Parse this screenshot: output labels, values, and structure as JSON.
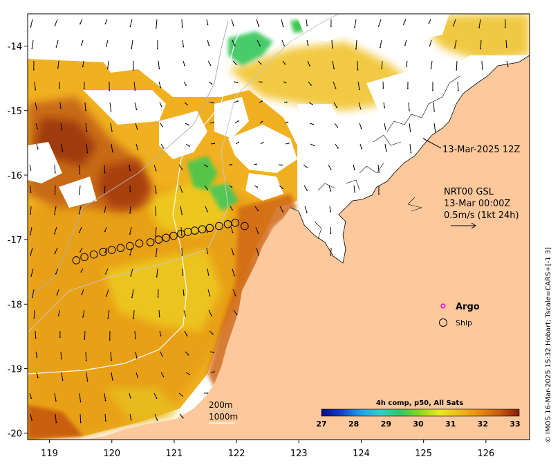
{
  "map": {
    "x_axis": {
      "min": 118.65,
      "max": 126.7,
      "ticks": [
        "119",
        "120",
        "121",
        "122",
        "123",
        "124",
        "125",
        "126"
      ],
      "tick_values": [
        119,
        120,
        121,
        122,
        123,
        124,
        125,
        126
      ]
    },
    "y_axis": {
      "min": -20.1,
      "max": -13.5,
      "ticks": [
        "-14",
        "-15",
        "-16",
        "-17",
        "-18",
        "-19",
        "-20"
      ],
      "tick_values": [
        -14,
        -15,
        -16,
        -17,
        -18,
        -19,
        -20
      ]
    },
    "land_color": "#fdc99c",
    "colormap": [
      "#0a0a8a",
      "#1540c8",
      "#1fa0e8",
      "#30d0c8",
      "#30c860",
      "#90d820",
      "#e8e820",
      "#f2b81a",
      "#e88a10",
      "#c85a10",
      "#8a1a08"
    ]
  },
  "annotations": {
    "time_label": "13-Mar-2025 12Z",
    "info_line1": "NRT00 GSL",
    "info_line2": "13-Mar 00:00Z",
    "info_line3": "0.5m/s (1kt 24h)"
  },
  "legend": {
    "argo_label": "Argo",
    "ship_label": "Ship",
    "argo_color": "#e000e0"
  },
  "contours": {
    "label_200": "200m",
    "label_1000": "1000m"
  },
  "colorbar": {
    "title": "4h comp, p50, All Sats",
    "ticks": [
      "27",
      "28",
      "29",
      "30",
      "31",
      "32",
      "33"
    ],
    "range": [
      27,
      33
    ]
  },
  "credit": "© IMOS 16-Mar-2025 15:32 Hobart; Tscale=CARS+[-1 3]",
  "ship_track": [
    [
      119.43,
      -17.32
    ],
    [
      119.56,
      -17.27
    ],
    [
      119.71,
      -17.23
    ],
    [
      119.86,
      -17.19
    ],
    [
      120.0,
      -17.16
    ],
    [
      120.14,
      -17.13
    ],
    [
      120.29,
      -17.1
    ],
    [
      120.44,
      -17.06
    ],
    [
      120.62,
      -17.04
    ],
    [
      120.75,
      -17.0
    ],
    [
      120.87,
      -16.97
    ],
    [
      120.99,
      -16.94
    ],
    [
      121.11,
      -16.91
    ],
    [
      121.22,
      -16.88
    ],
    [
      121.33,
      -16.86
    ],
    [
      121.45,
      -16.84
    ],
    [
      121.57,
      -16.82
    ],
    [
      121.72,
      -16.79
    ],
    [
      121.86,
      -16.76
    ],
    [
      121.98,
      -16.74
    ],
    [
      122.13,
      -16.79
    ]
  ]
}
